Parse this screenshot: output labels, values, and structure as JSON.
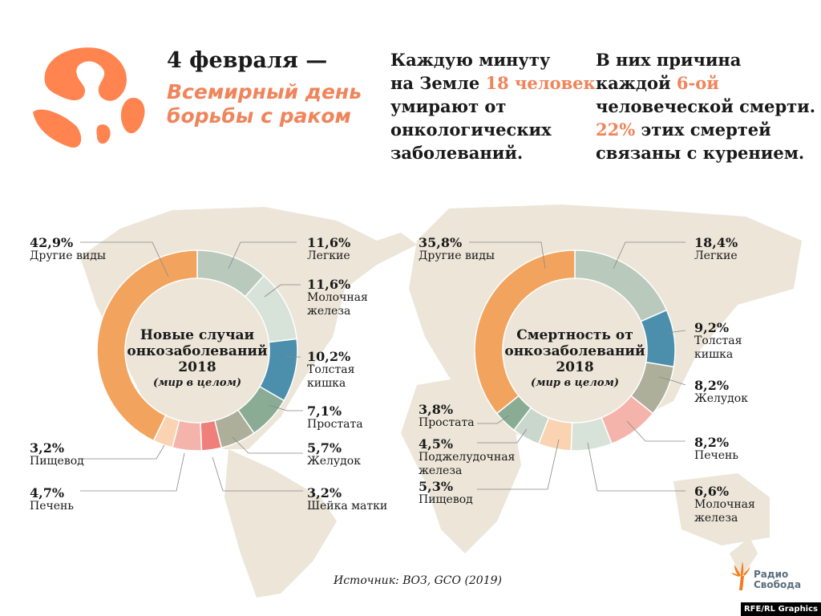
{
  "header": {
    "date": "4 февраля —",
    "event": [
      "Всемирный день",
      "борьбы с раком"
    ],
    "fact1": {
      "l1": "Каждую минуту",
      "l2a": "на Земле ",
      "l2b": "18 человек",
      "l3": "умирают от",
      "l4": "онкологических",
      "l5": "заболеваний."
    },
    "fact2": {
      "l1": "В них причина",
      "l2a": "каждой ",
      "l2b": "6-ой",
      "l3": "человеческой смерти.",
      "l4a": "22%",
      "l4b": " этих смертей",
      "l5": "связаны с курением."
    }
  },
  "colors": {
    "accent": "#f0845a",
    "map": "#ece5d8"
  },
  "chart_data": [
    {
      "type": "pie",
      "donut": true,
      "title": "Новые случаи онкозаболеваний 2018",
      "subtitle": "(мир в целом)",
      "slices": [
        {
          "label": "Легкие",
          "value": 11.6,
          "text": "11,6%",
          "color": "#b9cabd"
        },
        {
          "label": "Молочная железа",
          "value": 11.6,
          "text": "11,6%",
          "color": "#d7e2d9"
        },
        {
          "label": "Толстая кишка",
          "value": 10.2,
          "text": "10,2%",
          "color": "#4b8fac"
        },
        {
          "label": "Простата",
          "value": 7.1,
          "text": "7,1%",
          "color": "#8aac95"
        },
        {
          "label": "Желудок",
          "value": 5.7,
          "text": "5,7%",
          "color": "#aeaf9a"
        },
        {
          "label": "Шейка матки",
          "value": 3.2,
          "text": "3,2%",
          "color": "#ee7f7b"
        },
        {
          "label": "Печень",
          "value": 4.7,
          "text": "4,7%",
          "color": "#f4b4ab"
        },
        {
          "label": "Пищевод",
          "value": 3.2,
          "text": "3,2%",
          "color": "#fad4b2"
        },
        {
          "label": "Другие виды",
          "value": 42.9,
          "text": "42,9%",
          "color": "#f2a45f"
        }
      ]
    },
    {
      "type": "pie",
      "donut": true,
      "title": "Смертность от онкозаболеваний 2018",
      "subtitle": "(мир в целом)",
      "slices": [
        {
          "label": "Легкие",
          "value": 18.4,
          "text": "18,4%",
          "color": "#b9cabd"
        },
        {
          "label": "Толстая кишка",
          "value": 9.2,
          "text": "9,2%",
          "color": "#4b8fac"
        },
        {
          "label": "Желудок",
          "value": 8.2,
          "text": "8,2%",
          "color": "#aeaf9a"
        },
        {
          "label": "Печень",
          "value": 8.2,
          "text": "8,2%",
          "color": "#f4b4ab"
        },
        {
          "label": "Молочная железа",
          "value": 6.6,
          "text": "6,6%",
          "color": "#d7e2d9"
        },
        {
          "label": "Пищевод",
          "value": 5.3,
          "text": "5,3%",
          "color": "#fad4b2"
        },
        {
          "label": "Поджелудочная железа",
          "value": 4.5,
          "text": "4,5%",
          "color": "#c9d7cc"
        },
        {
          "label": "Простата",
          "value": 3.8,
          "text": "3,8%",
          "color": "#8aac95"
        },
        {
          "label": "Другие виды",
          "value": 35.8,
          "text": "35,8%",
          "color": "#f2a45f"
        }
      ]
    }
  ],
  "source": "Источник: ВОЗ, GCO (2019)",
  "logo": {
    "l1": "Радио",
    "l2": "Свобода"
  },
  "credit": "RFE/RL Graphics"
}
